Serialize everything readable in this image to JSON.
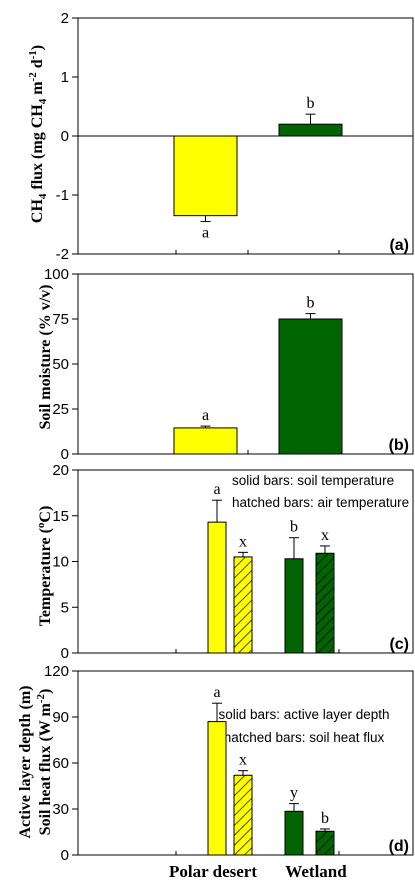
{
  "colors": {
    "polar_desert": "#ffff00",
    "wetland": "#006400",
    "axis": "#000000"
  },
  "x_categories": [
    "Polar desert",
    "Wetland"
  ],
  "chart_data": [
    {
      "panel": "(a)",
      "type": "bar",
      "ylabel": "CH4 flux (mg CH4 m-2 d-1)",
      "ylim": [
        -2,
        2
      ],
      "yticks": [
        -2,
        -1,
        0,
        1,
        2
      ],
      "zero_line": true,
      "categories": [
        "Polar desert",
        "Wetland"
      ],
      "series": [
        {
          "values": [
            -1.35,
            0.2
          ],
          "errors": [
            0.1,
            0.17
          ],
          "sig_labels": [
            "a",
            "b"
          ],
          "pattern": "solid"
        }
      ]
    },
    {
      "panel": "(b)",
      "type": "bar",
      "ylabel": "Soil moisture (% v/v)",
      "ylim": [
        0,
        100
      ],
      "yticks": [
        0,
        25,
        50,
        75,
        100
      ],
      "categories": [
        "Polar desert",
        "Wetland"
      ],
      "series": [
        {
          "values": [
            14.5,
            75
          ],
          "errors": [
            1,
            3
          ],
          "sig_labels": [
            "a",
            "b"
          ],
          "pattern": "solid"
        }
      ]
    },
    {
      "panel": "(c)",
      "type": "bar",
      "ylabel": "Temperature (oC)",
      "ylim": [
        0,
        20
      ],
      "yticks": [
        0,
        5,
        10,
        15,
        20
      ],
      "legend": [
        "solid bars: soil temperature",
        "hatched bars: air temperature"
      ],
      "categories": [
        "Polar desert",
        "Wetland"
      ],
      "series": [
        {
          "name": "soil temperature",
          "values": [
            14.3,
            10.3
          ],
          "errors": [
            2.4,
            2.3
          ],
          "sig_labels": [
            "a",
            "b"
          ],
          "pattern": "solid"
        },
        {
          "name": "air temperature",
          "values": [
            10.5,
            10.9
          ],
          "errors": [
            0.5,
            0.8
          ],
          "sig_labels": [
            "x",
            "x"
          ],
          "pattern": "hatched"
        }
      ]
    },
    {
      "panel": "(d)",
      "type": "bar",
      "ylabel": "Active layer depth (m) Soil heat flux (W m-2)",
      "ylim": [
        0,
        120
      ],
      "yticks": [
        0,
        30,
        60,
        90,
        120
      ],
      "legend": [
        "solid bars: active layer depth",
        "hatched bars: soil heat flux"
      ],
      "categories": [
        "Polar desert",
        "Wetland"
      ],
      "series": [
        {
          "name": "active layer depth",
          "values": [
            87,
            28.5
          ],
          "errors": [
            12,
            5
          ],
          "sig_labels": [
            "a",
            "y"
          ],
          "pattern": "solid"
        },
        {
          "name": "soil heat flux",
          "values": [
            52,
            15.5
          ],
          "errors": [
            3,
            1.5
          ],
          "sig_labels": [
            "x",
            "b"
          ],
          "pattern": "hatched"
        }
      ]
    }
  ]
}
